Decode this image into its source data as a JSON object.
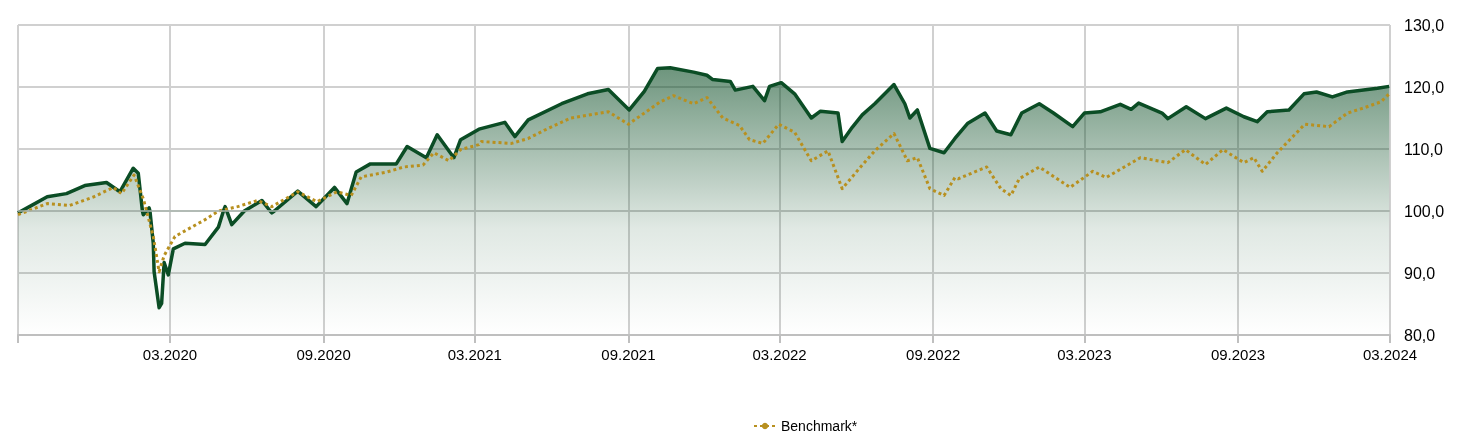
{
  "chart_data": {
    "type": "line",
    "legend": "bottom",
    "grid": true,
    "marker": "none",
    "xlim": [
      "2019-09-01",
      "2024-03-01"
    ],
    "xticks": [
      {
        "value": "2019-09-01",
        "label": null
      },
      {
        "value": "2020-03-01",
        "label": "03.2020"
      },
      {
        "value": "2020-09-01",
        "label": "09.2020"
      },
      {
        "value": "2021-03-01",
        "label": "03.2021"
      },
      {
        "value": "2021-09-01",
        "label": "09.2021"
      },
      {
        "value": "2022-03-01",
        "label": "03.2022"
      },
      {
        "value": "2022-09-01",
        "label": "09.2022"
      },
      {
        "value": "2023-03-01",
        "label": "03.2023"
      },
      {
        "value": "2023-09-01",
        "label": "09.2023"
      },
      {
        "value": "2024-03-01",
        "label": "03.2024"
      }
    ],
    "ylim": [
      80,
      130
    ],
    "yticks": [
      {
        "value": 80,
        "label": "80,0"
      },
      {
        "value": 90,
        "label": "90,0"
      },
      {
        "value": 100,
        "label": "100,0"
      },
      {
        "value": 110,
        "label": "110,0"
      },
      {
        "value": 120,
        "label": "120,0"
      },
      {
        "value": 130,
        "label": "130,0"
      }
    ],
    "ref_lines": [
      {
        "axis": "y",
        "value": 100,
        "color": "#a9b5ad"
      }
    ],
    "series": [
      {
        "type": "area",
        "color": "#0b4d25",
        "line_style": "solid",
        "x": [
          "2019-09-01",
          "2019-09-05",
          "2019-09-12",
          "2019-10-06",
          "2019-10-29",
          "2019-11-20",
          "2019-12-16",
          "2020-01-01",
          "2020-01-17",
          "2020-01-23",
          "2020-01-28",
          "2020-01-29",
          "2020-02-02",
          "2020-02-05",
          "2020-02-06",
          "2020-02-10",
          "2020-02-11",
          "2020-02-17",
          "2020-02-20",
          "2020-02-23",
          "2020-02-28",
          "2020-03-05",
          "2020-03-19",
          "2020-04-12",
          "2020-04-28",
          "2020-05-04",
          "2020-05-06",
          "2020-05-08",
          "2020-05-14",
          "2020-05-29",
          "2020-06-19",
          "2020-06-29",
          "2020-07-01",
          "2020-07-04",
          "2020-08-01",
          "2020-08-23",
          "2020-09-14",
          "2020-09-29",
          "2020-10-10",
          "2020-10-27",
          "2020-11-27",
          "2020-12-10",
          "2021-01-02",
          "2021-01-15",
          "2021-02-04",
          "2021-02-12",
          "2021-03-06",
          "2021-04-06",
          "2021-04-18",
          "2021-05-04",
          "2021-06-13",
          "2021-07-14",
          "2021-08-08",
          "2021-09-02",
          "2021-09-20",
          "2021-10-06",
          "2021-10-21",
          "2021-11-18",
          "2021-12-04",
          "2021-12-11",
          "2022-01-01",
          "2022-01-07",
          "2022-01-28",
          "2022-02-11",
          "2022-02-17",
          "2022-03-03",
          "2022-03-19",
          "2022-04-08",
          "2022-04-19",
          "2022-05-10",
          "2022-05-15",
          "2022-05-27",
          "2022-06-08",
          "2022-06-23",
          "2022-07-16",
          "2022-07-29",
          "2022-08-04",
          "2022-08-13",
          "2022-08-28",
          "2022-09-14",
          "2022-09-27",
          "2022-10-12",
          "2022-11-02",
          "2022-11-16",
          "2022-12-03",
          "2022-12-16",
          "2023-01-06",
          "2023-01-23",
          "2023-02-15",
          "2023-03-01",
          "2023-03-20",
          "2023-04-13",
          "2023-04-26",
          "2023-05-05",
          "2023-06-02",
          "2023-06-09",
          "2023-07-01",
          "2023-07-24",
          "2023-08-18",
          "2023-09-08",
          "2023-09-24",
          "2023-10-06",
          "2023-11-01",
          "2023-11-19",
          "2023-12-04",
          "2023-12-23",
          "2024-01-10",
          "2024-02-15",
          "2024-02-29"
        ],
        "values": [
          99.7,
          100,
          100.5,
          102.3,
          102.8,
          104.1,
          104.6,
          103.1,
          106.9,
          106.1,
          100,
          99.4,
          100,
          100.5,
          100,
          94.8,
          90.2,
          84.4,
          85.1,
          91.7,
          89.7,
          93.9,
          94.8,
          94.6,
          97.4,
          100,
          100.7,
          100,
          97.8,
          100.0,
          101.7,
          100,
          99.7,
          100,
          103.2,
          100.7,
          103.8,
          101.2,
          106.3,
          107.6,
          107.6,
          110.4,
          108.6,
          112.3,
          108.6,
          111.5,
          113.2,
          114.3,
          112.0,
          114.7,
          117.3,
          118.9,
          119.6,
          116.3,
          119.3,
          123.0,
          123.1,
          122.4,
          121.9,
          121.2,
          120.9,
          119.5,
          120.1,
          117.8,
          120.1,
          120.7,
          118.9,
          115.0,
          116.1,
          115.8,
          111.2,
          113.5,
          115.5,
          117.3,
          120.4,
          117.3,
          115.0,
          116.3,
          110.1,
          109.4,
          111.7,
          114.1,
          115.8,
          112.9,
          112.3,
          115.8,
          117.3,
          115.8,
          113.6,
          115.8,
          116.0,
          117.2,
          116.4,
          117.4,
          115.8,
          114.9,
          116.8,
          114.9,
          116.6,
          115.2,
          114.4,
          116.0,
          116.3,
          118.9,
          119.2,
          118.4,
          119.2,
          119.8,
          120.1
        ]
      },
      {
        "type": "line",
        "name": "Benchmark*",
        "color": "#b8901f",
        "line_style": "dotted",
        "x": [
          "2019-09-01",
          "2019-10-06",
          "2019-11-02",
          "2019-12-01",
          "2019-12-24",
          "2020-01-03",
          "2020-01-18",
          "2020-01-29",
          "2020-02-10",
          "2020-02-17",
          "2020-02-23",
          "2020-03-07",
          "2020-03-27",
          "2020-04-12",
          "2020-04-28",
          "2020-05-21",
          "2020-06-14",
          "2020-07-01",
          "2020-08-01",
          "2020-08-24",
          "2020-09-17",
          "2020-10-04",
          "2020-10-16",
          "2020-11-16",
          "2020-12-06",
          "2020-12-29",
          "2021-01-11",
          "2021-01-29",
          "2021-02-12",
          "2021-03-06",
          "2021-03-09",
          "2021-04-14",
          "2021-05-04",
          "2021-05-23",
          "2021-06-24",
          "2021-08-08",
          "2021-09-01",
          "2021-10-09",
          "2021-10-25",
          "2021-11-18",
          "2021-12-04",
          "2021-12-23",
          "2022-01-12",
          "2022-01-24",
          "2022-02-09",
          "2022-02-28",
          "2022-03-19",
          "2022-04-08",
          "2022-04-28",
          "2022-05-15",
          "2022-06-06",
          "2022-06-23",
          "2022-07-16",
          "2022-08-01",
          "2022-08-13",
          "2022-08-28",
          "2022-09-14",
          "2022-09-27",
          "2022-10-01",
          "2022-11-04",
          "2022-11-21",
          "2022-12-03",
          "2022-12-13",
          "2023-01-06",
          "2023-02-12",
          "2023-03-11",
          "2023-03-27",
          "2023-05-07",
          "2023-06-09",
          "2023-06-30",
          "2023-07-24",
          "2023-08-14",
          "2023-09-08",
          "2023-09-20",
          "2023-09-30",
          "2023-10-18",
          "2023-11-20",
          "2023-12-19",
          "2024-01-10",
          "2024-01-29",
          "2024-02-19",
          "2024-02-29"
        ],
        "values": [
          99.4,
          101.2,
          100.9,
          102.3,
          103.8,
          102.8,
          105.8,
          102.0,
          95.9,
          90.2,
          92.8,
          95.9,
          97.4,
          98.6,
          100.0,
          100.7,
          101.7,
          100.7,
          103.1,
          101.5,
          103.1,
          102.5,
          105.5,
          106.3,
          107.1,
          107.4,
          109.4,
          108.1,
          109.9,
          110.7,
          111.2,
          110.9,
          111.7,
          113.0,
          115.0,
          116.0,
          114.0,
          117.6,
          118.6,
          117.3,
          118.3,
          115.0,
          113.8,
          111.5,
          110.9,
          114.0,
          112.7,
          108.1,
          109.7,
          103.6,
          107.1,
          109.7,
          112.5,
          108.1,
          108.6,
          103.6,
          102.5,
          105.4,
          105.2,
          107.1,
          103.6,
          102.5,
          105.2,
          107.1,
          103.8,
          106.4,
          105.4,
          108.6,
          107.8,
          109.9,
          107.5,
          109.9,
          107.8,
          108.6,
          106.4,
          109.4,
          114.0,
          113.6,
          115.8,
          116.6,
          117.6,
          118.9
        ]
      }
    ]
  }
}
